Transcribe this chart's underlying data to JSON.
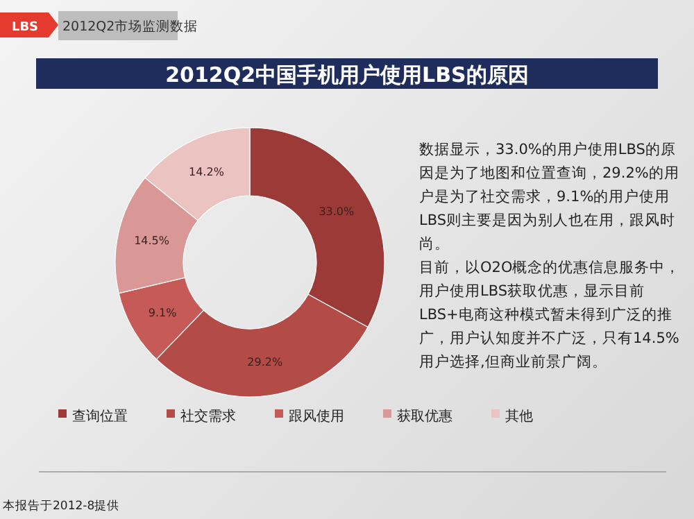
{
  "chart_data": {
    "type": "donut",
    "title": "2012Q2中国手机用户使用LBS的原因",
    "subtitle": "2012Q2市场监测数据",
    "categories": [
      "查询位置",
      "社交需求",
      "跟风使用",
      "获取优惠",
      "其他"
    ],
    "values": [
      33.0,
      29.2,
      9.1,
      14.5,
      14.2
    ],
    "value_labels": [
      "33.0%",
      "29.2%",
      "9.1%",
      "14.5%",
      "14.2%"
    ],
    "colors": [
      "#9b3a36",
      "#b34b47",
      "#c55a56",
      "#d99795",
      "#ebc4c2"
    ],
    "legend": "bottom",
    "annotations": [
      "LBS",
      "数据显示，33.0%的用户使用LBS的原因是为了地图和位置查询，29.2%的用户是为了社交需求，9.1%的用户使用LBS则主要是因为别人也在用，跟风时尚。",
      "目前，以O2O概念的优惠信息服务中，用户使用LBS获取优惠，显示目前LBS+电商这种模式暂未得到广泛的推广，用户认知度并不广泛，只有14.5%用户选择,但商业前景广阔。",
      "本报告于2012-8提供"
    ]
  }
}
